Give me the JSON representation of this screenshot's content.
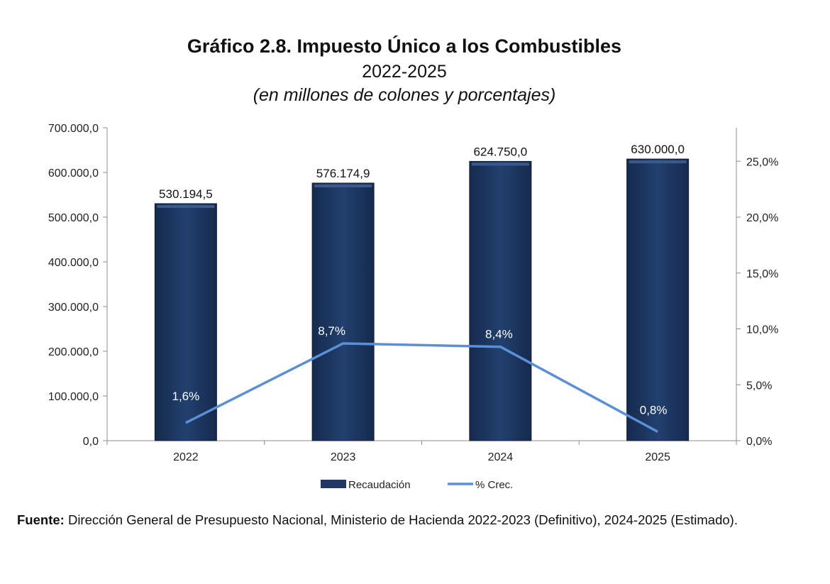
{
  "header": {
    "title": "Gráfico 2.8. Impuesto Único a los Combustibles",
    "period": "2022-2025",
    "units": "(en millones de colones y porcentajes)"
  },
  "chart_data": {
    "type": "bar",
    "categories": [
      "2022",
      "2023",
      "2024",
      "2025"
    ],
    "series": [
      {
        "name": "Recaudación",
        "kind": "bar",
        "axis": "left",
        "color": "#1f3864",
        "values": [
          530194.5,
          576174.9,
          624750.0,
          630000.0
        ],
        "labels": [
          "530.194,5",
          "576.174,9",
          "624.750,0",
          "630.000,0"
        ]
      },
      {
        "name": "% Crec.",
        "kind": "line",
        "axis": "right",
        "color": "#5b8fd6",
        "values": [
          1.6,
          8.7,
          8.4,
          0.8
        ],
        "labels": [
          "1,6%",
          "8,7%",
          "8,4%",
          "0,8%"
        ]
      }
    ],
    "y_left": {
      "range": [
        0,
        700000
      ],
      "ticks": [
        0,
        100000,
        200000,
        300000,
        400000,
        500000,
        600000,
        700000
      ],
      "tick_labels": [
        "0,0",
        "100.000,0",
        "200.000,0",
        "300.000,0",
        "400.000,0",
        "500.000,0",
        "600.000,0",
        "700.000,0"
      ]
    },
    "y_right": {
      "range": [
        0,
        28
      ],
      "ticks": [
        0,
        5,
        10,
        15,
        20,
        25
      ],
      "tick_labels": [
        "0,0%",
        "5,0%",
        "10,0%",
        "15,0%",
        "20,0%",
        "25,0%"
      ]
    },
    "grid": false,
    "legend_position": "bottom-center"
  },
  "footer": {
    "source_label": "Fuente:",
    "source_text": " Dirección General de Presupuesto Nacional, Ministerio de Hacienda 2022-2023 (Definitivo), 2024-2025 (Estimado)."
  }
}
